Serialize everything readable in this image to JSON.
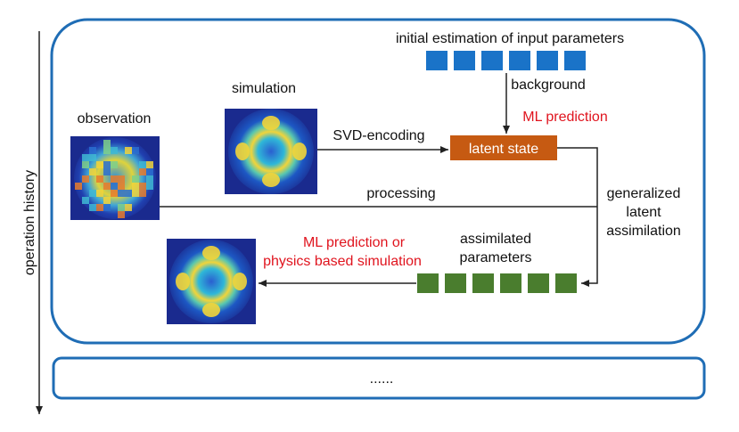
{
  "side_label": "operation history",
  "labels": {
    "initial": "initial estimation of input parameters",
    "background": "background",
    "ml_prediction": "ML prediction",
    "latent_state": "latent state",
    "simulation": "simulation",
    "observation": "observation",
    "svd": "SVD-encoding",
    "processing": "processing",
    "gla_line1": "generalized",
    "gla_line2": "latent",
    "gla_line3": "assimilation",
    "assimilated_line1": "assimilated",
    "assimilated_line2": "parameters",
    "ml_phys_line1": "ML prediction or",
    "ml_phys_line2": "physics based simulation"
  },
  "lower_box_text": "......",
  "colors": {
    "frame": "#1f6db5",
    "input_block": "#1a73c8",
    "assim_block": "#4a7d2e",
    "latent_box": "#c65a12",
    "accent_red": "#e0141e"
  }
}
